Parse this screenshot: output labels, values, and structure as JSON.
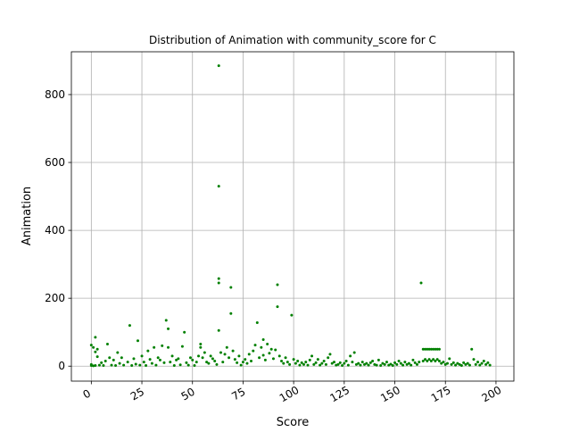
{
  "chart_data": {
    "type": "scatter",
    "title": "Distribution of Animation with community_score for C",
    "xlabel": "Score",
    "ylabel": "Animation",
    "xlim": [
      -9.85,
      208.85
    ],
    "ylim": [
      -44.1,
      926.1
    ],
    "x_ticks": [
      0,
      25,
      50,
      75,
      100,
      125,
      150,
      175,
      200
    ],
    "y_ticks": [
      0,
      200,
      400,
      600,
      800
    ],
    "x_tick_rotation_deg": 30,
    "grid": true,
    "marker_color": "#008000",
    "marker": "circle",
    "series": [
      {
        "points": [
          [
            0,
            2
          ],
          [
            0,
            62
          ],
          [
            0,
            5
          ],
          [
            1,
            55
          ],
          [
            1,
            1
          ],
          [
            2,
            42
          ],
          [
            2,
            2
          ],
          [
            2,
            85
          ],
          [
            3,
            28
          ],
          [
            3,
            50
          ],
          [
            4,
            3
          ],
          [
            5,
            10
          ],
          [
            6,
            2
          ],
          [
            7,
            15
          ],
          [
            8,
            65
          ],
          [
            9,
            25
          ],
          [
            10,
            3
          ],
          [
            11,
            18
          ],
          [
            12,
            2
          ],
          [
            13,
            40
          ],
          [
            14,
            8
          ],
          [
            15,
            25
          ],
          [
            16,
            3
          ],
          [
            18,
            12
          ],
          [
            19,
            120
          ],
          [
            20,
            2
          ],
          [
            21,
            22
          ],
          [
            22,
            6
          ],
          [
            23,
            75
          ],
          [
            24,
            3
          ],
          [
            25,
            30
          ],
          [
            26,
            12
          ],
          [
            27,
            2
          ],
          [
            28,
            45
          ],
          [
            29,
            20
          ],
          [
            30,
            8
          ],
          [
            31,
            55
          ],
          [
            32,
            3
          ],
          [
            33,
            25
          ],
          [
            34,
            18
          ],
          [
            35,
            60
          ],
          [
            36,
            10
          ],
          [
            37,
            135
          ],
          [
            38,
            110
          ],
          [
            38,
            55
          ],
          [
            39,
            12
          ],
          [
            40,
            30
          ],
          [
            41,
            2
          ],
          [
            42,
            18
          ],
          [
            43,
            22
          ],
          [
            44,
            4
          ],
          [
            45,
            58
          ],
          [
            46,
            100
          ],
          [
            47,
            10
          ],
          [
            48,
            3
          ],
          [
            49,
            25
          ],
          [
            50,
            18
          ],
          [
            51,
            2
          ],
          [
            52,
            12
          ],
          [
            53,
            30
          ],
          [
            54,
            65
          ],
          [
            54,
            55
          ],
          [
            55,
            25
          ],
          [
            56,
            40
          ],
          [
            57,
            12
          ],
          [
            58,
            8
          ],
          [
            59,
            30
          ],
          [
            60,
            22
          ],
          [
            61,
            15
          ],
          [
            62,
            5
          ],
          [
            63,
            885
          ],
          [
            63,
            530
          ],
          [
            63,
            258
          ],
          [
            63,
            245
          ],
          [
            63,
            105
          ],
          [
            64,
            40
          ],
          [
            65,
            12
          ],
          [
            66,
            35
          ],
          [
            67,
            55
          ],
          [
            68,
            25
          ],
          [
            69,
            232
          ],
          [
            69,
            155
          ],
          [
            70,
            45
          ],
          [
            71,
            20
          ],
          [
            72,
            10
          ],
          [
            73,
            30
          ],
          [
            74,
            3
          ],
          [
            75,
            12
          ],
          [
            76,
            20
          ],
          [
            77,
            8
          ],
          [
            78,
            35
          ],
          [
            79,
            15
          ],
          [
            80,
            45
          ],
          [
            81,
            62
          ],
          [
            82,
            128
          ],
          [
            83,
            25
          ],
          [
            84,
            55
          ],
          [
            85,
            78
          ],
          [
            85,
            32
          ],
          [
            86,
            18
          ],
          [
            87,
            65
          ],
          [
            88,
            38
          ],
          [
            89,
            50
          ],
          [
            90,
            22
          ],
          [
            91,
            48
          ],
          [
            92,
            240
          ],
          [
            92,
            175
          ],
          [
            93,
            30
          ],
          [
            94,
            15
          ],
          [
            95,
            8
          ],
          [
            96,
            25
          ],
          [
            97,
            12
          ],
          [
            98,
            5
          ],
          [
            99,
            150
          ],
          [
            100,
            20
          ],
          [
            101,
            8
          ],
          [
            102,
            15
          ],
          [
            103,
            3
          ],
          [
            104,
            10
          ],
          [
            105,
            5
          ],
          [
            106,
            12
          ],
          [
            107,
            3
          ],
          [
            108,
            18
          ],
          [
            109,
            30
          ],
          [
            110,
            5
          ],
          [
            111,
            10
          ],
          [
            112,
            20
          ],
          [
            113,
            3
          ],
          [
            114,
            8
          ],
          [
            115,
            15
          ],
          [
            116,
            5
          ],
          [
            117,
            25
          ],
          [
            118,
            35
          ],
          [
            119,
            8
          ],
          [
            120,
            12
          ],
          [
            121,
            3
          ],
          [
            122,
            5
          ],
          [
            123,
            10
          ],
          [
            124,
            2
          ],
          [
            125,
            8
          ],
          [
            126,
            15
          ],
          [
            127,
            3
          ],
          [
            128,
            30
          ],
          [
            129,
            12
          ],
          [
            130,
            40
          ],
          [
            131,
            5
          ],
          [
            132,
            8
          ],
          [
            133,
            3
          ],
          [
            134,
            12
          ],
          [
            135,
            5
          ],
          [
            136,
            8
          ],
          [
            137,
            3
          ],
          [
            138,
            10
          ],
          [
            139,
            15
          ],
          [
            140,
            5
          ],
          [
            141,
            3
          ],
          [
            142,
            18
          ],
          [
            143,
            2
          ],
          [
            144,
            8
          ],
          [
            145,
            5
          ],
          [
            146,
            12
          ],
          [
            147,
            3
          ],
          [
            148,
            6
          ],
          [
            149,
            2
          ],
          [
            150,
            10
          ],
          [
            151,
            5
          ],
          [
            152,
            15
          ],
          [
            153,
            8
          ],
          [
            154,
            3
          ],
          [
            155,
            12
          ],
          [
            156,
            5
          ],
          [
            157,
            8
          ],
          [
            158,
            3
          ],
          [
            159,
            18
          ],
          [
            160,
            10
          ],
          [
            161,
            5
          ],
          [
            162,
            12
          ],
          [
            163,
            245
          ],
          [
            164,
            50
          ],
          [
            164,
            15
          ],
          [
            165,
            50
          ],
          [
            165,
            20
          ],
          [
            166,
            50
          ],
          [
            166,
            15
          ],
          [
            167,
            50
          ],
          [
            167,
            20
          ],
          [
            168,
            50
          ],
          [
            168,
            15
          ],
          [
            169,
            50
          ],
          [
            169,
            20
          ],
          [
            170,
            50
          ],
          [
            170,
            15
          ],
          [
            171,
            50
          ],
          [
            171,
            20
          ],
          [
            172,
            50
          ],
          [
            172,
            15
          ],
          [
            173,
            8
          ],
          [
            174,
            12
          ],
          [
            175,
            5
          ],
          [
            176,
            8
          ],
          [
            177,
            22
          ],
          [
            178,
            5
          ],
          [
            179,
            10
          ],
          [
            180,
            3
          ],
          [
            181,
            8
          ],
          [
            182,
            5
          ],
          [
            183,
            2
          ],
          [
            184,
            10
          ],
          [
            185,
            5
          ],
          [
            186,
            8
          ],
          [
            187,
            3
          ],
          [
            188,
            50
          ],
          [
            189,
            20
          ],
          [
            190,
            5
          ],
          [
            191,
            12
          ],
          [
            192,
            3
          ],
          [
            193,
            8
          ],
          [
            194,
            15
          ],
          [
            195,
            5
          ],
          [
            196,
            10
          ],
          [
            197,
            3
          ]
        ]
      }
    ]
  }
}
